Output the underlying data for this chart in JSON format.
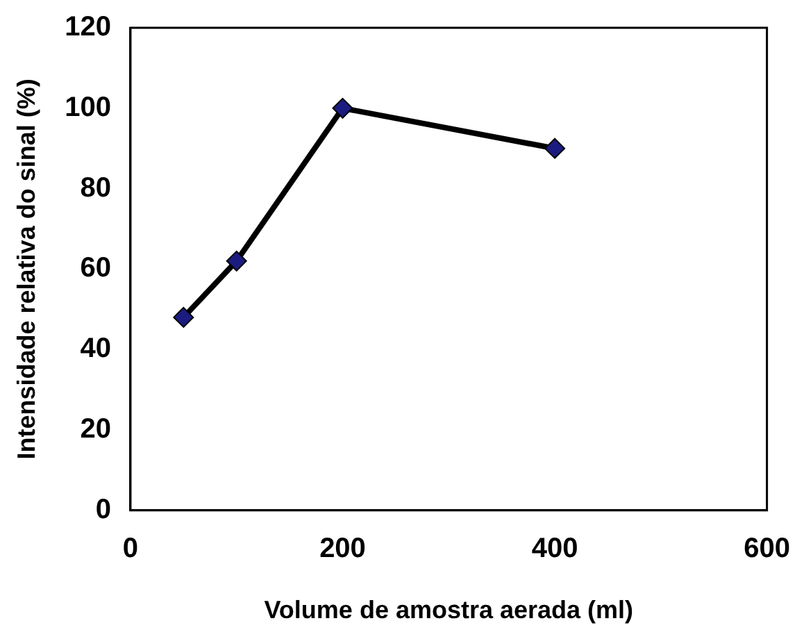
{
  "chart_data": {
    "type": "line",
    "xlabel": "Volume de amostra aerada (ml)",
    "ylabel": "Intensidade relativa do sinal (%)",
    "x": [
      50,
      100,
      200,
      400
    ],
    "series": [
      {
        "color": "#000000",
        "values": [
          48,
          62,
          100,
          90
        ]
      }
    ],
    "xlim": [
      0,
      600
    ],
    "xticks": [
      0,
      200,
      400,
      600
    ],
    "ylim": [
      0,
      120
    ],
    "yticks": [
      0,
      20,
      40,
      60,
      80,
      100,
      120
    ],
    "grid": false,
    "legend": false,
    "marker": "diamond",
    "line_style": "solid"
  }
}
